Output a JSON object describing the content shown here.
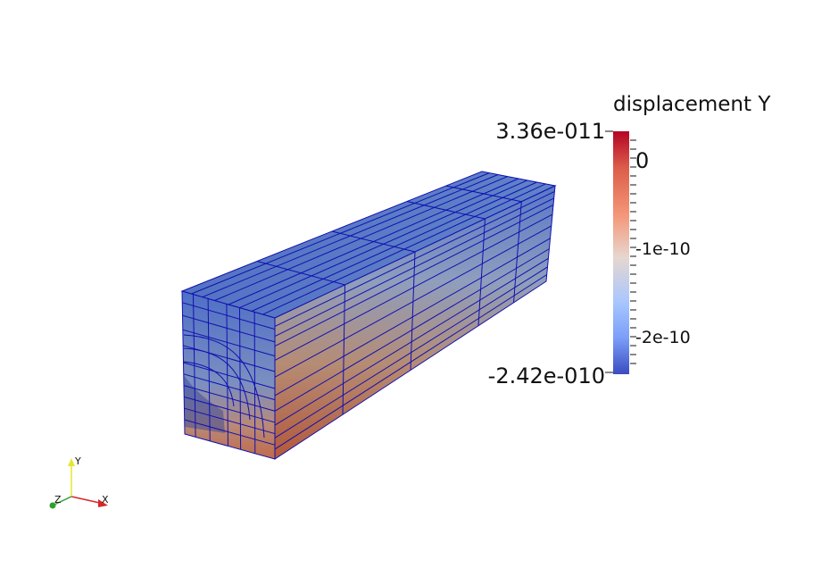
{
  "colorbar": {
    "title": "displacement Y",
    "max_label": "3.36e-011",
    "min_label": "-2.42e-010",
    "ticks": [
      {
        "label": "0",
        "value": 0
      },
      {
        "label": "-1e-10",
        "value": -1e-10
      },
      {
        "label": "-2e-10",
        "value": -2e-10
      }
    ],
    "range": [
      -2.42e-10,
      3.36e-11
    ],
    "colormap": [
      "#3b4cc0",
      "#dddddd",
      "#b40426"
    ]
  },
  "orientation_axes": {
    "x_label": "X",
    "y_label": "Y",
    "z_label": "Z",
    "x_color": "#d62728",
    "y_color": "#e6e62e",
    "z_color": "#2ca02c"
  },
  "mesh": {
    "edge_color": "#1010b0",
    "surface_top_color": "#5a77c6"
  }
}
